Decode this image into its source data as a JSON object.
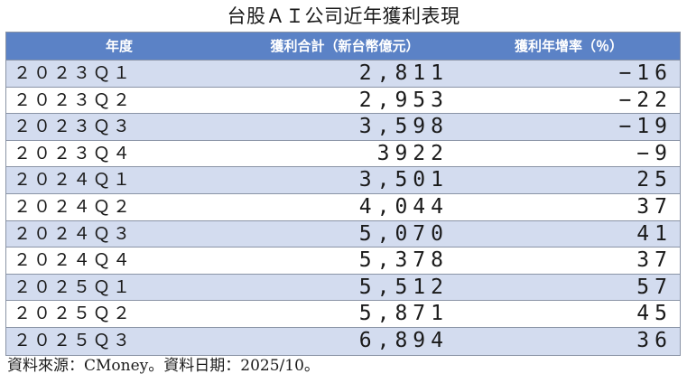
{
  "title": "台股ＡＩ公司近年獲利表現",
  "table": {
    "headers": [
      "年度",
      "獲利合計（新台幣億元）",
      "獲利年增率（％）"
    ],
    "rows": [
      {
        "period": "２０２３Ｑ１",
        "profit": "2,811",
        "growth": "−16"
      },
      {
        "period": "２０２３Ｑ２",
        "profit": "2,953",
        "growth": "−22"
      },
      {
        "period": "２０２３Ｑ３",
        "profit": "3,598",
        "growth": "−19"
      },
      {
        "period": "２０２３Ｑ４",
        "profit": "3922",
        "growth": "−9"
      },
      {
        "period": "２０２４Ｑ１",
        "profit": "3,501",
        "growth": "25"
      },
      {
        "period": "２０２４Ｑ２",
        "profit": "4,044",
        "growth": "37"
      },
      {
        "period": "２０２４Ｑ３",
        "profit": "5,070",
        "growth": "41"
      },
      {
        "period": "２０２４Ｑ４",
        "profit": "5,378",
        "growth": "37"
      },
      {
        "period": "２０２５Ｑ１",
        "profit": "5,512",
        "growth": "57"
      },
      {
        "period": "２０２５Ｑ２",
        "profit": "5,871",
        "growth": "45"
      },
      {
        "period": "２０２５Ｑ３",
        "profit": "6,894",
        "growth": "36"
      }
    ]
  },
  "source": "資料來源：CMoney。資料日期：2025/10。"
}
